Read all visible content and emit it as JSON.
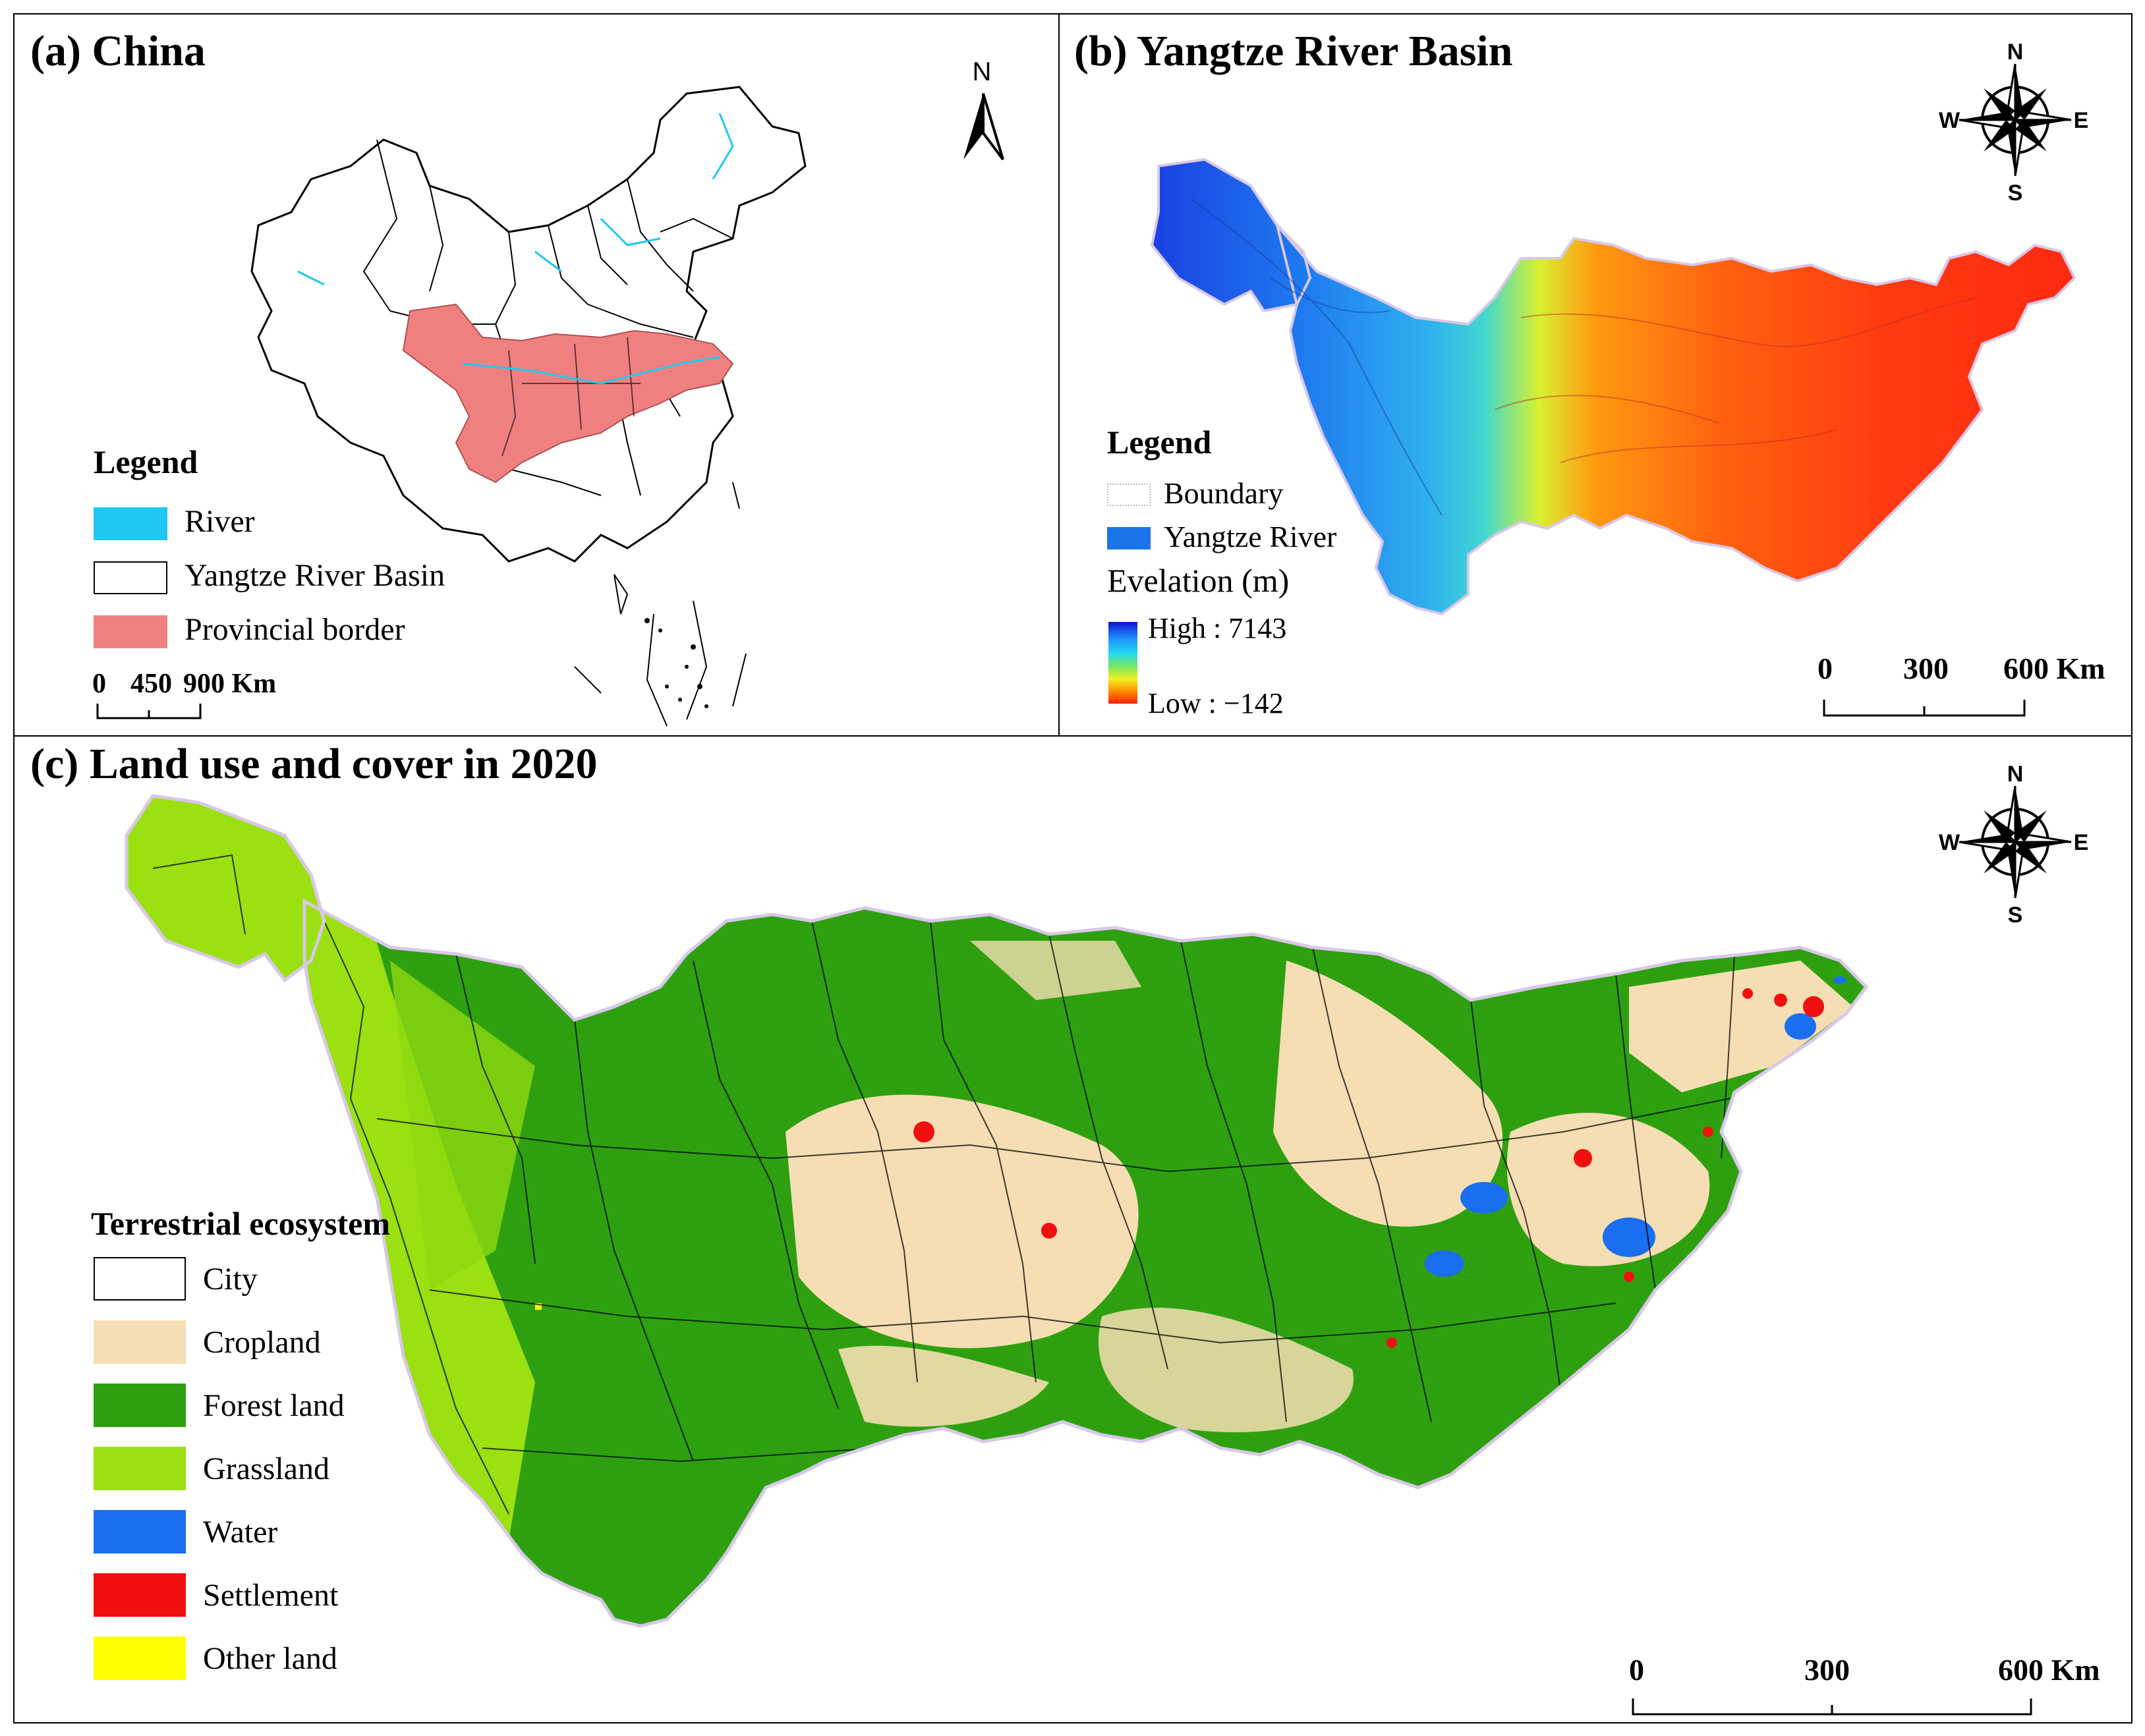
{
  "panel_a": {
    "title": "(a) China",
    "north_label": "N",
    "legend_title": "Legend",
    "legend_items": [
      {
        "label": "River",
        "color": "#1ec8f0"
      },
      {
        "label": "Yangtze River Basin",
        "color": "#ffffff"
      },
      {
        "label": "Provincial border",
        "color": "#f08080"
      }
    ],
    "scale_labels": [
      "0",
      "450",
      "900 Km"
    ]
  },
  "panel_b": {
    "title": "(b) Yangtze River Basin",
    "compass": {
      "n": "N",
      "s": "S",
      "e": "E",
      "w": "W"
    },
    "legend_title": "Legend",
    "legend_items": [
      {
        "label": "Boundary",
        "color": "#ffffff"
      },
      {
        "label": "Yangtze River",
        "color": "#1a73e8"
      }
    ],
    "elevation_title": "Evelation (m)",
    "elevation_high": "High : 7143",
    "elevation_low": "Low : −142",
    "scale_labels": [
      "0",
      "300",
      "600 Km"
    ]
  },
  "panel_c": {
    "title": "(c) Land use and cover in 2020",
    "compass": {
      "n": "N",
      "s": "S",
      "e": "E",
      "w": "W"
    },
    "legend_title": "Terrestrial ecosystem",
    "legend_items": [
      {
        "label": "City",
        "color": "#ffffff"
      },
      {
        "label": "Cropland",
        "color": "#f5deb3"
      },
      {
        "label": "Forest land",
        "color": "#2ea010"
      },
      {
        "label": "Grassland",
        "color": "#9be010"
      },
      {
        "label": "Water",
        "color": "#1a6ef0"
      },
      {
        "label": "Settlement",
        "color": "#f01010"
      },
      {
        "label": "Other land",
        "color": "#ffff00"
      }
    ],
    "scale_labels": [
      "0",
      "300",
      "600 Km"
    ]
  }
}
